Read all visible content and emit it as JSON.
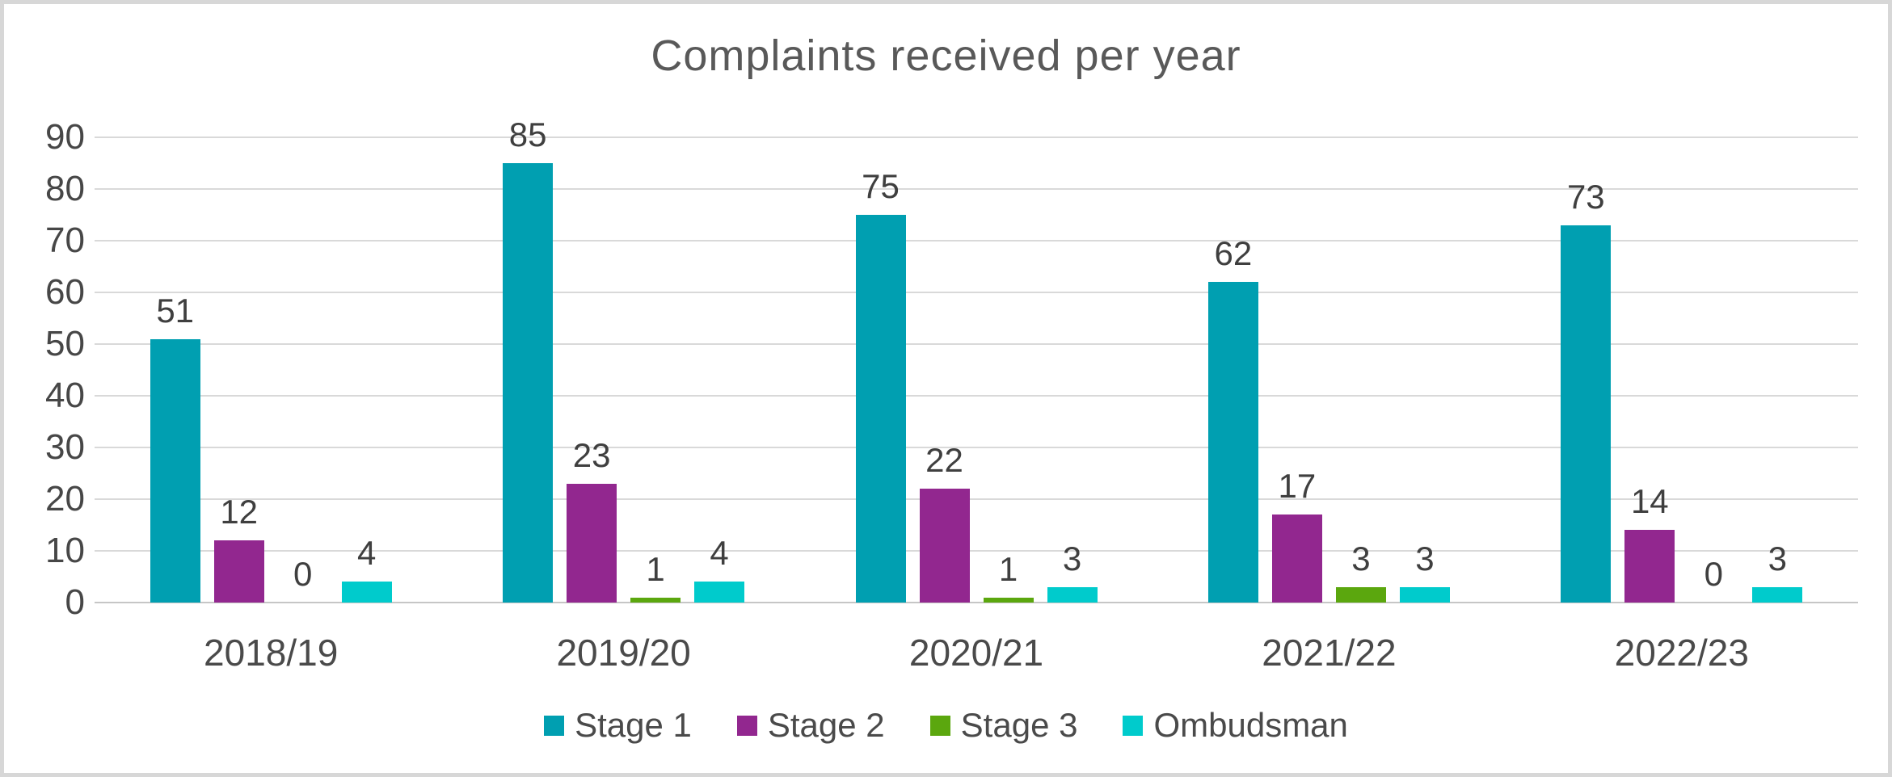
{
  "title": "Complaints received per year",
  "colors": {
    "stage1": "#009fb1",
    "stage2": "#92278f",
    "stage3": "#5ba70e",
    "ombudsman": "#00cbcc",
    "gridline": "#d9d9d9",
    "axis_text": "#474747",
    "title_text": "#595959",
    "frame_border": "#d7d7d7",
    "background": "#ffffff"
  },
  "chart_data": {
    "type": "bar",
    "title": "Complaints received per year",
    "categories": [
      "2018/19",
      "2019/20",
      "2020/21",
      "2021/22",
      "2022/23"
    ],
    "series": [
      {
        "name": "Stage 1",
        "color": "#009fb1",
        "values": [
          51,
          85,
          75,
          62,
          73
        ]
      },
      {
        "name": "Stage 2",
        "color": "#92278f",
        "values": [
          12,
          23,
          22,
          17,
          14
        ]
      },
      {
        "name": "Stage 3",
        "color": "#5ba70e",
        "values": [
          0,
          1,
          1,
          3,
          0
        ]
      },
      {
        "name": "Ombudsman",
        "color": "#00cbcc",
        "values": [
          4,
          4,
          3,
          3,
          3
        ]
      }
    ],
    "ylim": [
      0,
      90
    ],
    "yticks": [
      0,
      10,
      20,
      30,
      40,
      50,
      60,
      70,
      80,
      90
    ],
    "ytick_labels": [
      "0",
      "10",
      "20",
      "30",
      "40",
      "50",
      "60",
      "70",
      "80",
      "90"
    ],
    "grid": "horizontal",
    "legend_position": "bottom",
    "data_labels": true
  }
}
